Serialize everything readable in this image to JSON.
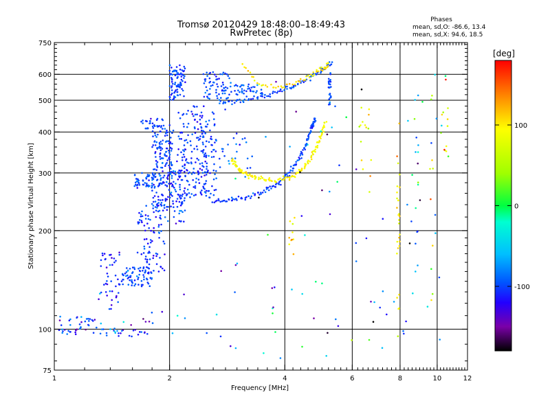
{
  "chart_data": {
    "type": "scatter",
    "title": "Tromsø 20120429 18:48:00–18:49:43",
    "subtitle": "RwPretec (8p)",
    "stats": {
      "heading": "Phases",
      "line1": "mean, sd,O: -86.6, 13.4",
      "line2": "mean, sd,X:  94.6, 18.5"
    },
    "xlabel": "Frequency [MHz]",
    "ylabel": "Stationary phase Virtual Height [km]",
    "x_scale": "log",
    "y_scale": "log",
    "xlim": [
      1,
      12
    ],
    "ylim": [
      75,
      750
    ],
    "x_ticks": [
      {
        "value": 1,
        "label": "1"
      },
      {
        "value": 2,
        "label": "2"
      },
      {
        "value": 4,
        "label": "4"
      },
      {
        "value": 6,
        "label": "6"
      },
      {
        "value": 8,
        "label": "8"
      },
      {
        "value": 10,
        "label": "10"
      },
      {
        "value": 12,
        "label": "12"
      }
    ],
    "y_ticks": [
      {
        "value": 75,
        "label": "75"
      },
      {
        "value": 100,
        "label": "100"
      },
      {
        "value": 200,
        "label": "200"
      },
      {
        "value": 300,
        "label": "300"
      },
      {
        "value": 400,
        "label": "400"
      },
      {
        "value": 500,
        "label": "500"
      },
      {
        "value": 600,
        "label": "600"
      },
      {
        "value": 750,
        "label": "750"
      }
    ],
    "grid": true,
    "x_gridlines": [
      2,
      4,
      6,
      8,
      10
    ],
    "y_gridlines": [
      100,
      200,
      300,
      400,
      500,
      600
    ],
    "colorbar": {
      "unit": "[deg]",
      "range": [
        -180,
        180
      ],
      "ticks": [
        {
          "value": 100,
          "label": "100"
        },
        {
          "value": 0,
          "label": "0"
        },
        {
          "value": -100,
          "label": "-100"
        }
      ],
      "colormap": [
        {
          "value": -180,
          "color": "#000000"
        },
        {
          "value": -150,
          "color": "#7a00a8"
        },
        {
          "value": -120,
          "color": "#2200ff"
        },
        {
          "value": -95,
          "color": "#0055ff"
        },
        {
          "value": -60,
          "color": "#00bfff"
        },
        {
          "value": -20,
          "color": "#00ffd0"
        },
        {
          "value": 0,
          "color": "#00ff40"
        },
        {
          "value": 40,
          "color": "#a0ff00"
        },
        {
          "value": 95,
          "color": "#ffff00"
        },
        {
          "value": 130,
          "color": "#ff9900"
        },
        {
          "value": 180,
          "color": "#ff0000"
        }
      ]
    },
    "point_series": [
      {
        "freq_range": [
          1.02,
          1.3
        ],
        "height_range": [
          96,
          110
        ],
        "count": 40,
        "phase": -105,
        "phase_sd": 20
      },
      {
        "freq_range": [
          1.3,
          1.75
        ],
        "height_range": [
          95,
          100
        ],
        "count": 24,
        "phase": -100,
        "phase_sd": 25
      },
      {
        "freq_range": [
          1.3,
          1.5
        ],
        "height_range": [
          115,
          175
        ],
        "count": 45,
        "phase": -110,
        "phase_sd": 15
      },
      {
        "freq_range": [
          1.5,
          1.8
        ],
        "height_range": [
          135,
          155
        ],
        "count": 70,
        "phase": -100,
        "phase_sd": 12
      },
      {
        "freq_range": [
          1.65,
          1.95
        ],
        "height_range": [
          150,
          240
        ],
        "count": 80,
        "phase": -105,
        "phase_sd": 12
      },
      {
        "freq_range": [
          1.62,
          1.9
        ],
        "height_range": [
          270,
          300
        ],
        "count": 60,
        "phase": -100,
        "phase_sd": 10
      },
      {
        "freq_range": [
          1.8,
          2.05
        ],
        "height_range": [
          230,
          420
        ],
        "count": 170,
        "phase": -100,
        "phase_sd": 12
      },
      {
        "freq_range": [
          1.68,
          1.92
        ],
        "height_range": [
          410,
          440
        ],
        "count": 30,
        "phase": -100,
        "phase_sd": 10
      },
      {
        "freq_range": [
          1.95,
          2.2
        ],
        "height_range": [
          210,
          350
        ],
        "count": 80,
        "phase": -105,
        "phase_sd": 12
      },
      {
        "freq_range": [
          2.0,
          2.2
        ],
        "height_range": [
          500,
          640
        ],
        "count": 85,
        "phase": -100,
        "phase_sd": 10
      },
      {
        "freq_range": [
          2.1,
          2.5
        ],
        "height_range": [
          240,
          480
        ],
        "count": 140,
        "phase": -105,
        "phase_sd": 12
      },
      {
        "freq_range": [
          2.4,
          2.65
        ],
        "height_range": [
          250,
          460
        ],
        "count": 90,
        "phase": -100,
        "phase_sd": 10
      },
      {
        "freq_range": [
          2.45,
          2.9
        ],
        "height_range": [
          500,
          610
        ],
        "count": 70,
        "phase": -100,
        "phase_sd": 10
      },
      {
        "freq_range": [
          2.95,
          3.5
        ],
        "height_range": [
          520,
          560
        ],
        "count": 40,
        "phase": -95,
        "phase_sd": 10
      },
      {
        "freq_range": [
          2.7,
          3.3
        ],
        "height_range": [
          300,
          390
        ],
        "count": 20,
        "phase": -95,
        "phase_sd": 10
      },
      {
        "freq_range": [
          5.2,
          5.28
        ],
        "height_range": [
          480,
          610
        ],
        "count": 30,
        "phase": -100,
        "phase_sd": 8
      },
      {
        "freq_range": [
          1.3,
          2.7
        ],
        "height_range": [
          95,
          130
        ],
        "count": 20,
        "phase": -90,
        "phase_sd": 40
      },
      {
        "freq_range": [
          2.7,
          10.8
        ],
        "height_range": [
          80,
          600
        ],
        "count": 90,
        "phase": -80,
        "phase_sd": 60
      },
      {
        "freq_range": [
          6.3,
          6.75
        ],
        "height_range": [
          260,
          500
        ],
        "count": 14,
        "phase": 90,
        "phase_sd": 30
      },
      {
        "freq_range": [
          7.85,
          8.0
        ],
        "height_range": [
          95,
          500
        ],
        "count": 28,
        "phase": 100,
        "phase_sd": 20
      },
      {
        "freq_range": [
          8.75,
          8.95
        ],
        "height_range": [
          150,
          600
        ],
        "count": 14,
        "phase": -60,
        "phase_sd": 50
      },
      {
        "freq_range": [
          9.55,
          9.75
        ],
        "height_range": [
          100,
          520
        ],
        "count": 10,
        "phase": 90,
        "phase_sd": 40
      },
      {
        "freq_range": [
          10.2,
          10.75
        ],
        "height_range": [
          330,
          600
        ],
        "count": 14,
        "phase": 80,
        "phase_sd": 60
      },
      {
        "freq_range": [
          4.1,
          4.25
        ],
        "height_range": [
          130,
          230
        ],
        "count": 10,
        "phase": 100,
        "phase_sd": 15
      }
    ],
    "trace_series": [
      {
        "freq": [
          2.6,
          3.0,
          3.5,
          3.9,
          4.2,
          4.5,
          4.7,
          4.8
        ],
        "height": [
          245,
          250,
          262,
          280,
          310,
          355,
          410,
          440
        ],
        "count": 140,
        "phase": -100,
        "phase_sd": 8
      },
      {
        "freq": [
          2.7,
          3.1,
          3.6,
          4.1,
          4.6,
          5.0,
          5.3
        ],
        "height": [
          490,
          500,
          520,
          545,
          580,
          615,
          650
        ],
        "count": 100,
        "phase": -100,
        "phase_sd": 8
      },
      {
        "freq": [
          2.9,
          3.05,
          3.3,
          3.7,
          4.2,
          4.6,
          4.9,
          5.1
        ],
        "height": [
          330,
          305,
          292,
          284,
          292,
          320,
          370,
          430
        ],
        "count": 140,
        "phase": 95,
        "phase_sd": 8
      },
      {
        "freq": [
          3.1,
          3.4,
          3.8,
          4.2,
          4.6,
          4.9,
          5.1,
          5.2
        ],
        "height": [
          640,
          560,
          545,
          560,
          590,
          615,
          630,
          640
        ],
        "count": 60,
        "phase": 100,
        "phase_sd": 12
      }
    ]
  }
}
